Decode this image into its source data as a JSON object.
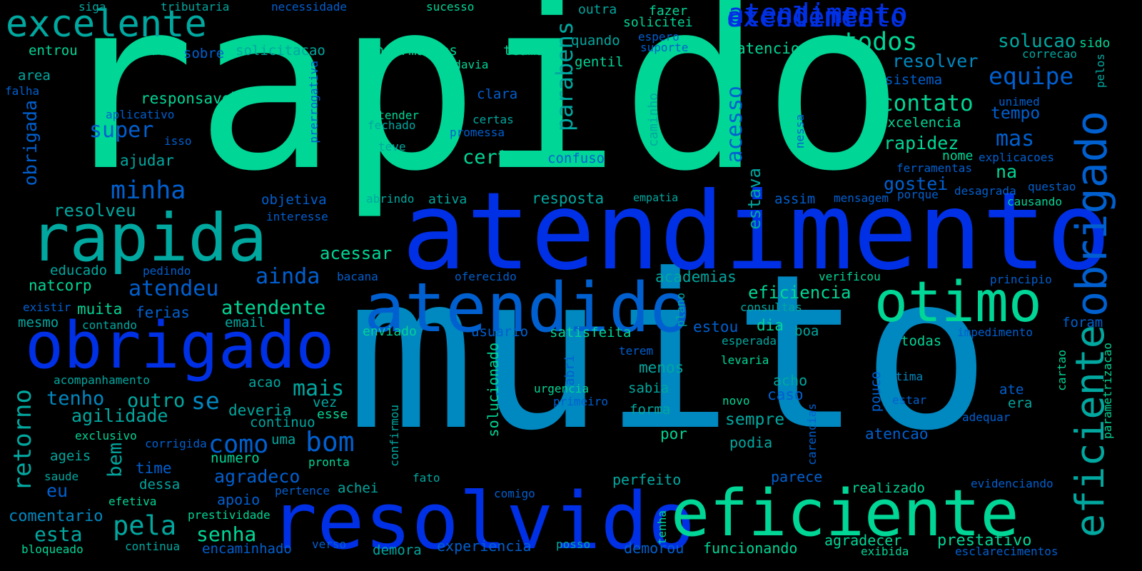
{
  "palette": {
    "green": "#00D696",
    "teal": "#00A8A0",
    "cyan": "#0088C0",
    "blue": "#0030E6",
    "mid": "#0060D0"
  },
  "words": [
    "rapido",
    "muito",
    "atendimento",
    "resolvido",
    "atendido",
    "obrigado",
    "rapida",
    "eficiente",
    "otimo",
    "obrigado",
    "eficiente",
    "atendimento",
    "excelente",
    "excelente",
    "atendimento",
    "todos",
    "equipe",
    "contato",
    "super",
    "minha",
    "parabens",
    "acesso",
    "mas",
    "rapidez",
    "tempo",
    "retorno",
    "obrigada",
    "bom",
    "pela",
    "como",
    "mais",
    "se",
    "agilidade",
    "tenho",
    "outro",
    "eu",
    "bem",
    "atendeu",
    "ainda",
    "senha",
    "agradeco",
    "atendente",
    "esta",
    "comentario",
    "certo",
    "estava",
    "na",
    "gostei",
    "solucao",
    "resolver",
    "entrou",
    "tudo",
    "sobre",
    "solicitacao",
    "informacoes",
    "teams",
    "quando",
    "gentil",
    "fazer",
    "solicitei",
    "outra",
    "atencioso",
    "responsavel",
    "clara",
    "entender",
    "fechado",
    "certas",
    "promessa",
    "teve",
    "confuso",
    "resposta",
    "empatia",
    "objetiva",
    "ativa",
    "abrindo",
    "assim",
    "mensagem",
    "porque",
    "desagrada",
    "questao",
    "causando",
    "ferramentas",
    "nome",
    "explicacoes",
    "excelencia",
    "sistema",
    "unimed",
    "correcao",
    "sido",
    "pelos",
    "area",
    "falha",
    "aplicativo",
    "isso",
    "prerrogativa",
    "caminho",
    "nessa",
    "ajudar",
    "resolveu",
    "interesse",
    "acessar",
    "educado",
    "pedindo",
    "natcorp",
    "bacana",
    "oferecido",
    "academias",
    "eficiencia",
    "verificou",
    "principio",
    "ferias",
    "muita",
    "existir",
    "mesmo",
    "contando",
    "email",
    "plano",
    "consultas",
    "dia",
    "boa",
    "estou",
    "usuario",
    "satisfeita",
    "enviado",
    "esperada",
    "levaria",
    "terem",
    "todas",
    "impedimento",
    "foram",
    "cartao",
    "parametrizacao",
    "acompanhamento",
    "acao",
    "deveria",
    "continuo",
    "vez",
    "esse",
    "solucionado",
    "urgencia",
    "primeiro",
    "confirmou",
    "carencias",
    "menos",
    "sabia",
    "forma",
    "acho",
    "caso",
    "sempre",
    "novo",
    "estar",
    "pouco",
    "ate",
    "era",
    "adequar",
    "podia",
    "por",
    "otima",
    "atencao",
    "exclusivo",
    "corrigida",
    "ageis",
    "time",
    "numero",
    "uma",
    "pronta",
    "fato",
    "saude",
    "dessa",
    "efetiva",
    "apoio",
    "perfeito",
    "parece",
    "realizado",
    "pertence",
    "achei",
    "comigo",
    "tenha",
    "evidenciando",
    "prestividade",
    "continua",
    "bloqueado",
    "encaminhado",
    "verso",
    "demora",
    "experiencia",
    "posso",
    "demorou",
    "funcionando",
    "agradecer",
    "prestativo",
    "exibida",
    "esclarecimentos",
    "siga",
    "tributaria",
    "necessidade",
    "sucesso",
    "todavia",
    "espero",
    "suporte",
    "abri"
  ]
}
